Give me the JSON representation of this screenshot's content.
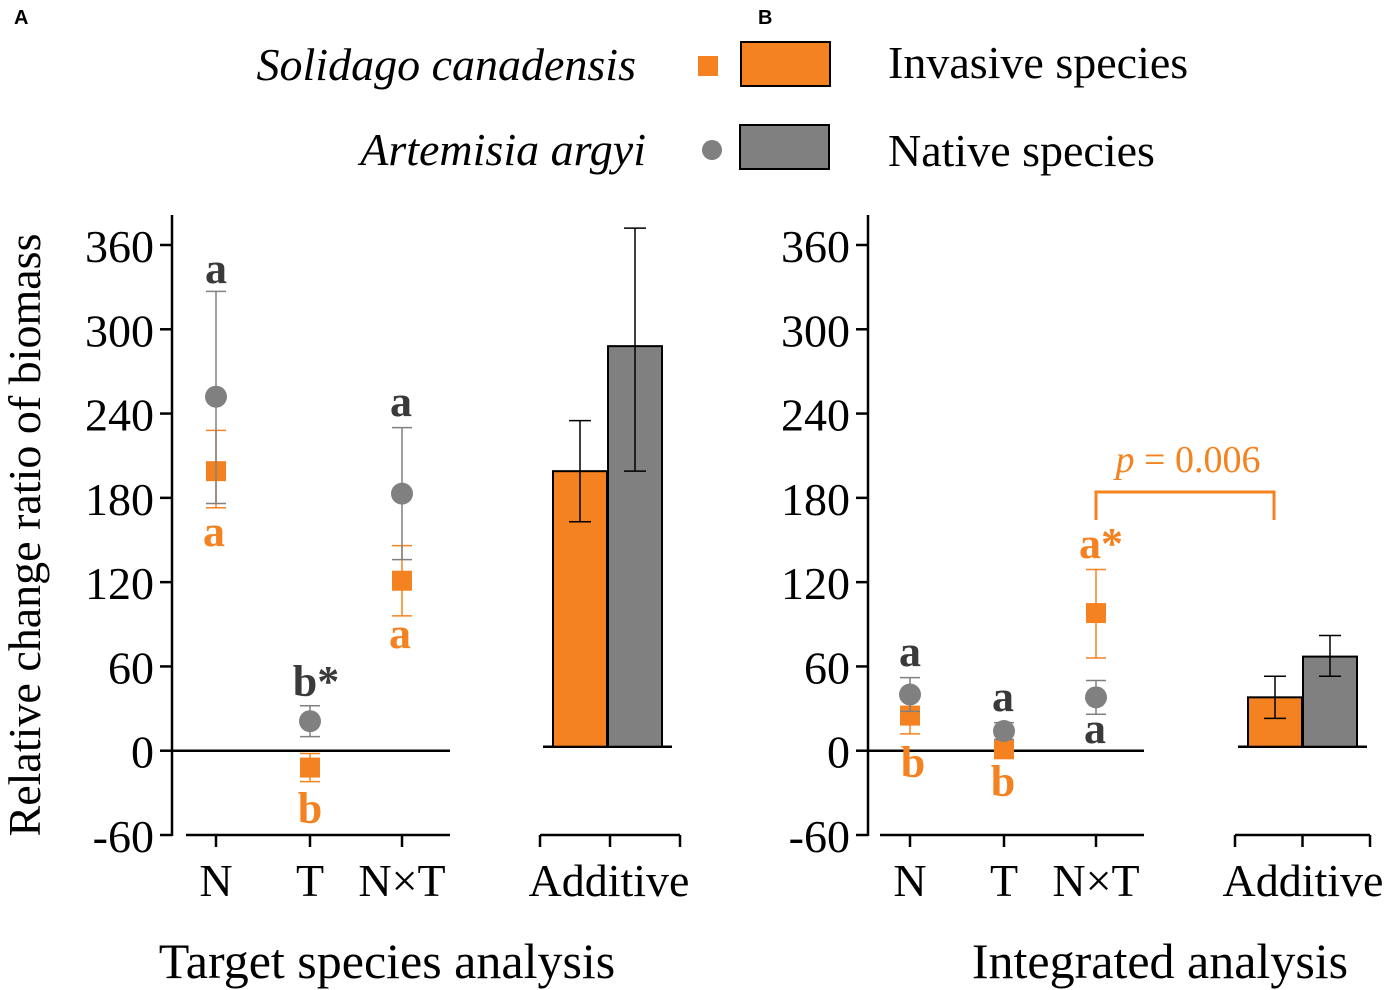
{
  "colors": {
    "invasive": "#f58220",
    "native": "#808080",
    "native_letter": "#3a3a3a",
    "axis": "#000000"
  },
  "legend": {
    "invasive_species_name": "Solidago canadensis",
    "invasive_label": "Invasive species",
    "native_species_name": "Artemisia argyi",
    "native_label": "Native species"
  },
  "y_axis_label": "Relative change ratio of biomass",
  "chart_data": [
    {
      "panel": "A",
      "type": "scatter",
      "title": "Target species analysis",
      "ylabel": "Relative change ratio of biomass",
      "ylim": [
        -60,
        360
      ],
      "yticks": [
        "-60",
        "0",
        "60",
        "120",
        "180",
        "240",
        "300",
        "360"
      ],
      "categories": [
        "N",
        "T",
        "N×T"
      ],
      "series": [
        {
          "name": "Solidago canadensis",
          "group": "invasive",
          "values": [
            199,
            -12,
            121
          ],
          "err_low": [
            173,
            -22,
            96
          ],
          "err_high": [
            228,
            -2,
            146
          ],
          "letters": [
            "a",
            "b",
            "a"
          ]
        },
        {
          "name": "Artemisia argyi",
          "group": "native",
          "values": [
            252,
            21,
            183
          ],
          "err_low": [
            176,
            10,
            136
          ],
          "err_high": [
            327,
            32,
            230
          ],
          "letters": [
            "a",
            "b*",
            "a"
          ]
        }
      ],
      "additive": {
        "label": "Additive",
        "bars": [
          {
            "group": "invasive",
            "value": 199,
            "err_low": 163,
            "err_high": 235
          },
          {
            "group": "native",
            "value": 288,
            "err_low": 199,
            "err_high": 372
          }
        ]
      }
    },
    {
      "panel": "B",
      "type": "scatter",
      "title": "Integrated analysis",
      "ylabel": "Relative change ratio of biomass",
      "ylim": [
        -60,
        360
      ],
      "yticks": [
        "-60",
        "0",
        "60",
        "120",
        "180",
        "240",
        "300",
        "360"
      ],
      "categories": [
        "N",
        "T",
        "N×T"
      ],
      "series": [
        {
          "name": "Solidago canadensis",
          "group": "invasive",
          "values": [
            25,
            1,
            98
          ],
          "err_low": [
            12,
            -4,
            66
          ],
          "err_high": [
            38,
            6,
            129
          ],
          "letters": [
            "b",
            "b",
            "a*"
          ]
        },
        {
          "name": "Artemisia argyi",
          "group": "native",
          "values": [
            40,
            14,
            38
          ],
          "err_low": [
            28,
            8,
            26
          ],
          "err_high": [
            52,
            20,
            50
          ],
          "letters": [
            "a",
            "a",
            "a"
          ]
        }
      ],
      "additive": {
        "label": "Additive",
        "bars": [
          {
            "group": "invasive",
            "value": 38,
            "err_low": 23,
            "err_high": 53
          },
          {
            "group": "native",
            "value": 67,
            "err_low": 53,
            "err_high": 82
          }
        ]
      },
      "annotation": {
        "p_symbol": "p",
        "p_value": "= 0.006",
        "between": [
          "N×T",
          "Additive"
        ],
        "group": "invasive"
      }
    }
  ]
}
